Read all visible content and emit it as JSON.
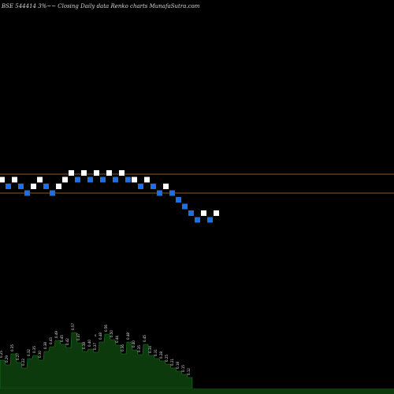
{
  "chart_data": {
    "type": "renko",
    "title": "BSE 544414  3%~~  Closing Daily data  Renko  charts MunafaSutra.com",
    "background": "#000000",
    "colors": {
      "up": "#ffffff",
      "down": "#1e6fe0",
      "reference_line": "#8a5a2b",
      "volume_fill": "#0d3a0d",
      "volume_edge": "#1f7a1f"
    },
    "reference_lines": [
      "upper",
      "lower"
    ],
    "bricks": [
      {
        "dir": "up",
        "level": 11
      },
      {
        "dir": "down",
        "level": 10
      },
      {
        "dir": "up",
        "level": 11
      },
      {
        "dir": "down",
        "level": 10
      },
      {
        "dir": "down",
        "level": 9
      },
      {
        "dir": "up",
        "level": 10
      },
      {
        "dir": "up",
        "level": 11
      },
      {
        "dir": "down",
        "level": 10
      },
      {
        "dir": "down",
        "level": 9
      },
      {
        "dir": "up",
        "level": 10
      },
      {
        "dir": "up",
        "level": 11
      },
      {
        "dir": "up",
        "level": 12
      },
      {
        "dir": "down",
        "level": 11
      },
      {
        "dir": "up",
        "level": 12
      },
      {
        "dir": "down",
        "level": 11
      },
      {
        "dir": "up",
        "level": 12
      },
      {
        "dir": "down",
        "level": 11
      },
      {
        "dir": "up",
        "level": 12
      },
      {
        "dir": "down",
        "level": 11
      },
      {
        "dir": "up",
        "level": 12
      },
      {
        "dir": "down",
        "level": 11
      },
      {
        "dir": "up",
        "level": 11
      },
      {
        "dir": "down",
        "level": 10
      },
      {
        "dir": "up",
        "level": 11
      },
      {
        "dir": "down",
        "level": 10
      },
      {
        "dir": "down",
        "level": 9
      },
      {
        "dir": "up",
        "level": 10
      },
      {
        "dir": "down",
        "level": 9
      },
      {
        "dir": "down",
        "level": 8
      },
      {
        "dir": "down",
        "level": 7
      },
      {
        "dir": "down",
        "level": 6
      },
      {
        "dir": "down",
        "level": 5
      },
      {
        "dir": "up",
        "level": 6
      },
      {
        "dir": "down",
        "level": 5
      },
      {
        "dir": "up",
        "level": 6
      }
    ],
    "volume": {
      "values": [
        36,
        30,
        44,
        33,
        26,
        38,
        42,
        36,
        47,
        53,
        61,
        56,
        52,
        71,
        58,
        47,
        50,
        46,
        59,
        69,
        62,
        55,
        44,
        59,
        49,
        43,
        56,
        42,
        38,
        35,
        31,
        26,
        22,
        18,
        14
      ],
      "labels": [
        "0.25",
        "0.29",
        "0.35",
        "0.27",
        "0.22",
        "0.32",
        "0.35",
        "0.30",
        "0.38",
        "0.43",
        "0.49",
        "0.45",
        "0.42",
        "0.57",
        "0.47",
        "0.38",
        "0.40",
        "0.37",
        "0.48",
        "0.56",
        "0.50",
        "0.44",
        "0.36",
        "0.48",
        "0.40",
        "0.35",
        "0.45",
        "0.34",
        "0.31",
        "0.28",
        "0.25",
        "0.21",
        "0.18",
        "0.15",
        "0.12"
      ],
      "marker": "s"
    }
  }
}
